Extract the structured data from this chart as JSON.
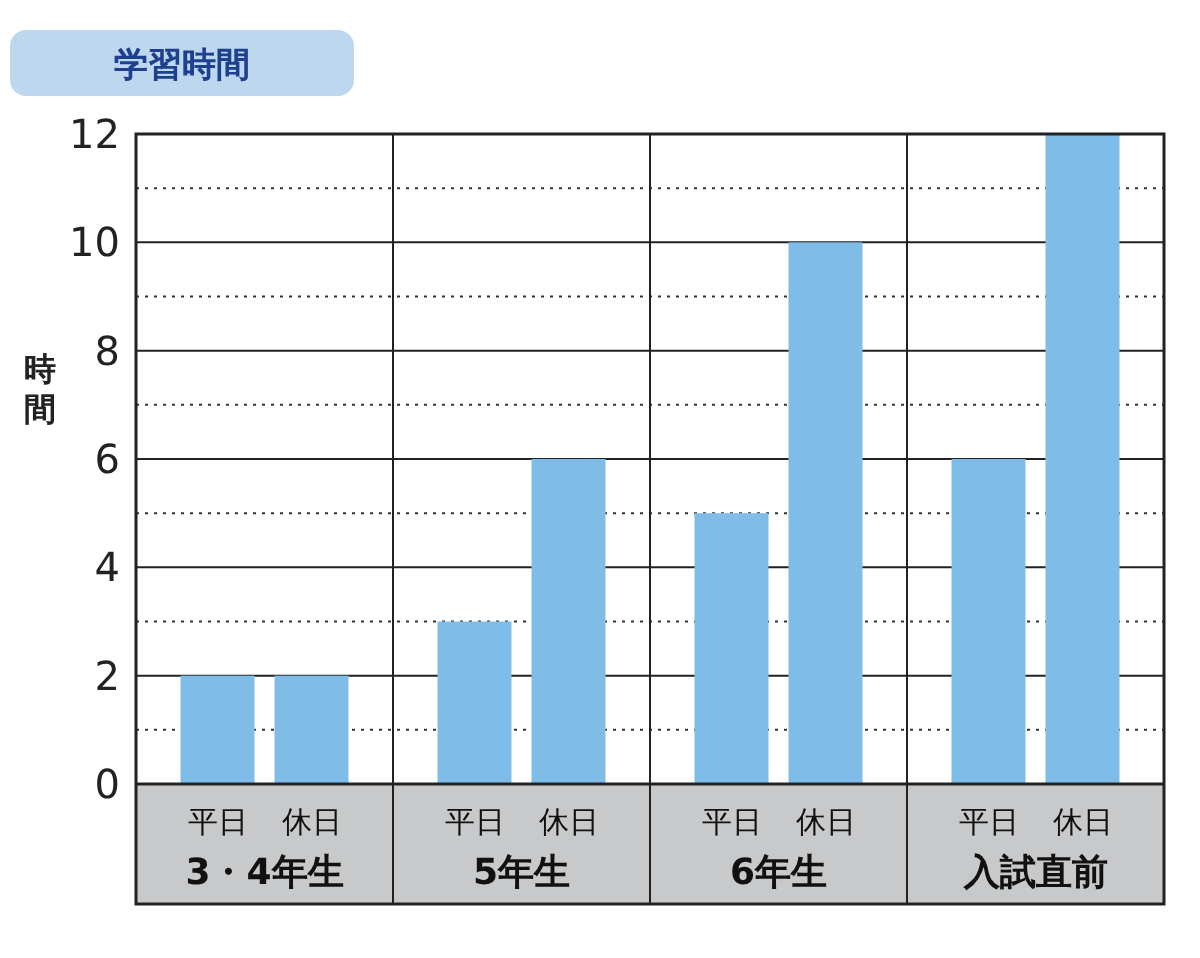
{
  "chart_data": {
    "type": "bar",
    "title": "学習時間",
    "ylabel": "時間",
    "categories": [
      "3・4年生",
      "5年生",
      "6年生",
      "入試直前"
    ],
    "series": [
      {
        "name": "平日",
        "color": "#7fbde8",
        "values": [
          2,
          3,
          5,
          6
        ]
      },
      {
        "name": "休日",
        "color": "#7fbde8",
        "values": [
          2,
          6,
          10,
          12
        ]
      }
    ],
    "ylim": [
      0,
      12
    ],
    "yticks": [
      0,
      {
        "value": 1,
        "label": null
      },
      2,
      {
        "value": 3,
        "label": null
      },
      4,
      {
        "value": 5,
        "label": null
      },
      6,
      {
        "value": 7,
        "label": null
      },
      8,
      {
        "value": 9,
        "label": null
      },
      10,
      {
        "value": 11,
        "label": null
      },
      12
    ],
    "grid": "y"
  }
}
